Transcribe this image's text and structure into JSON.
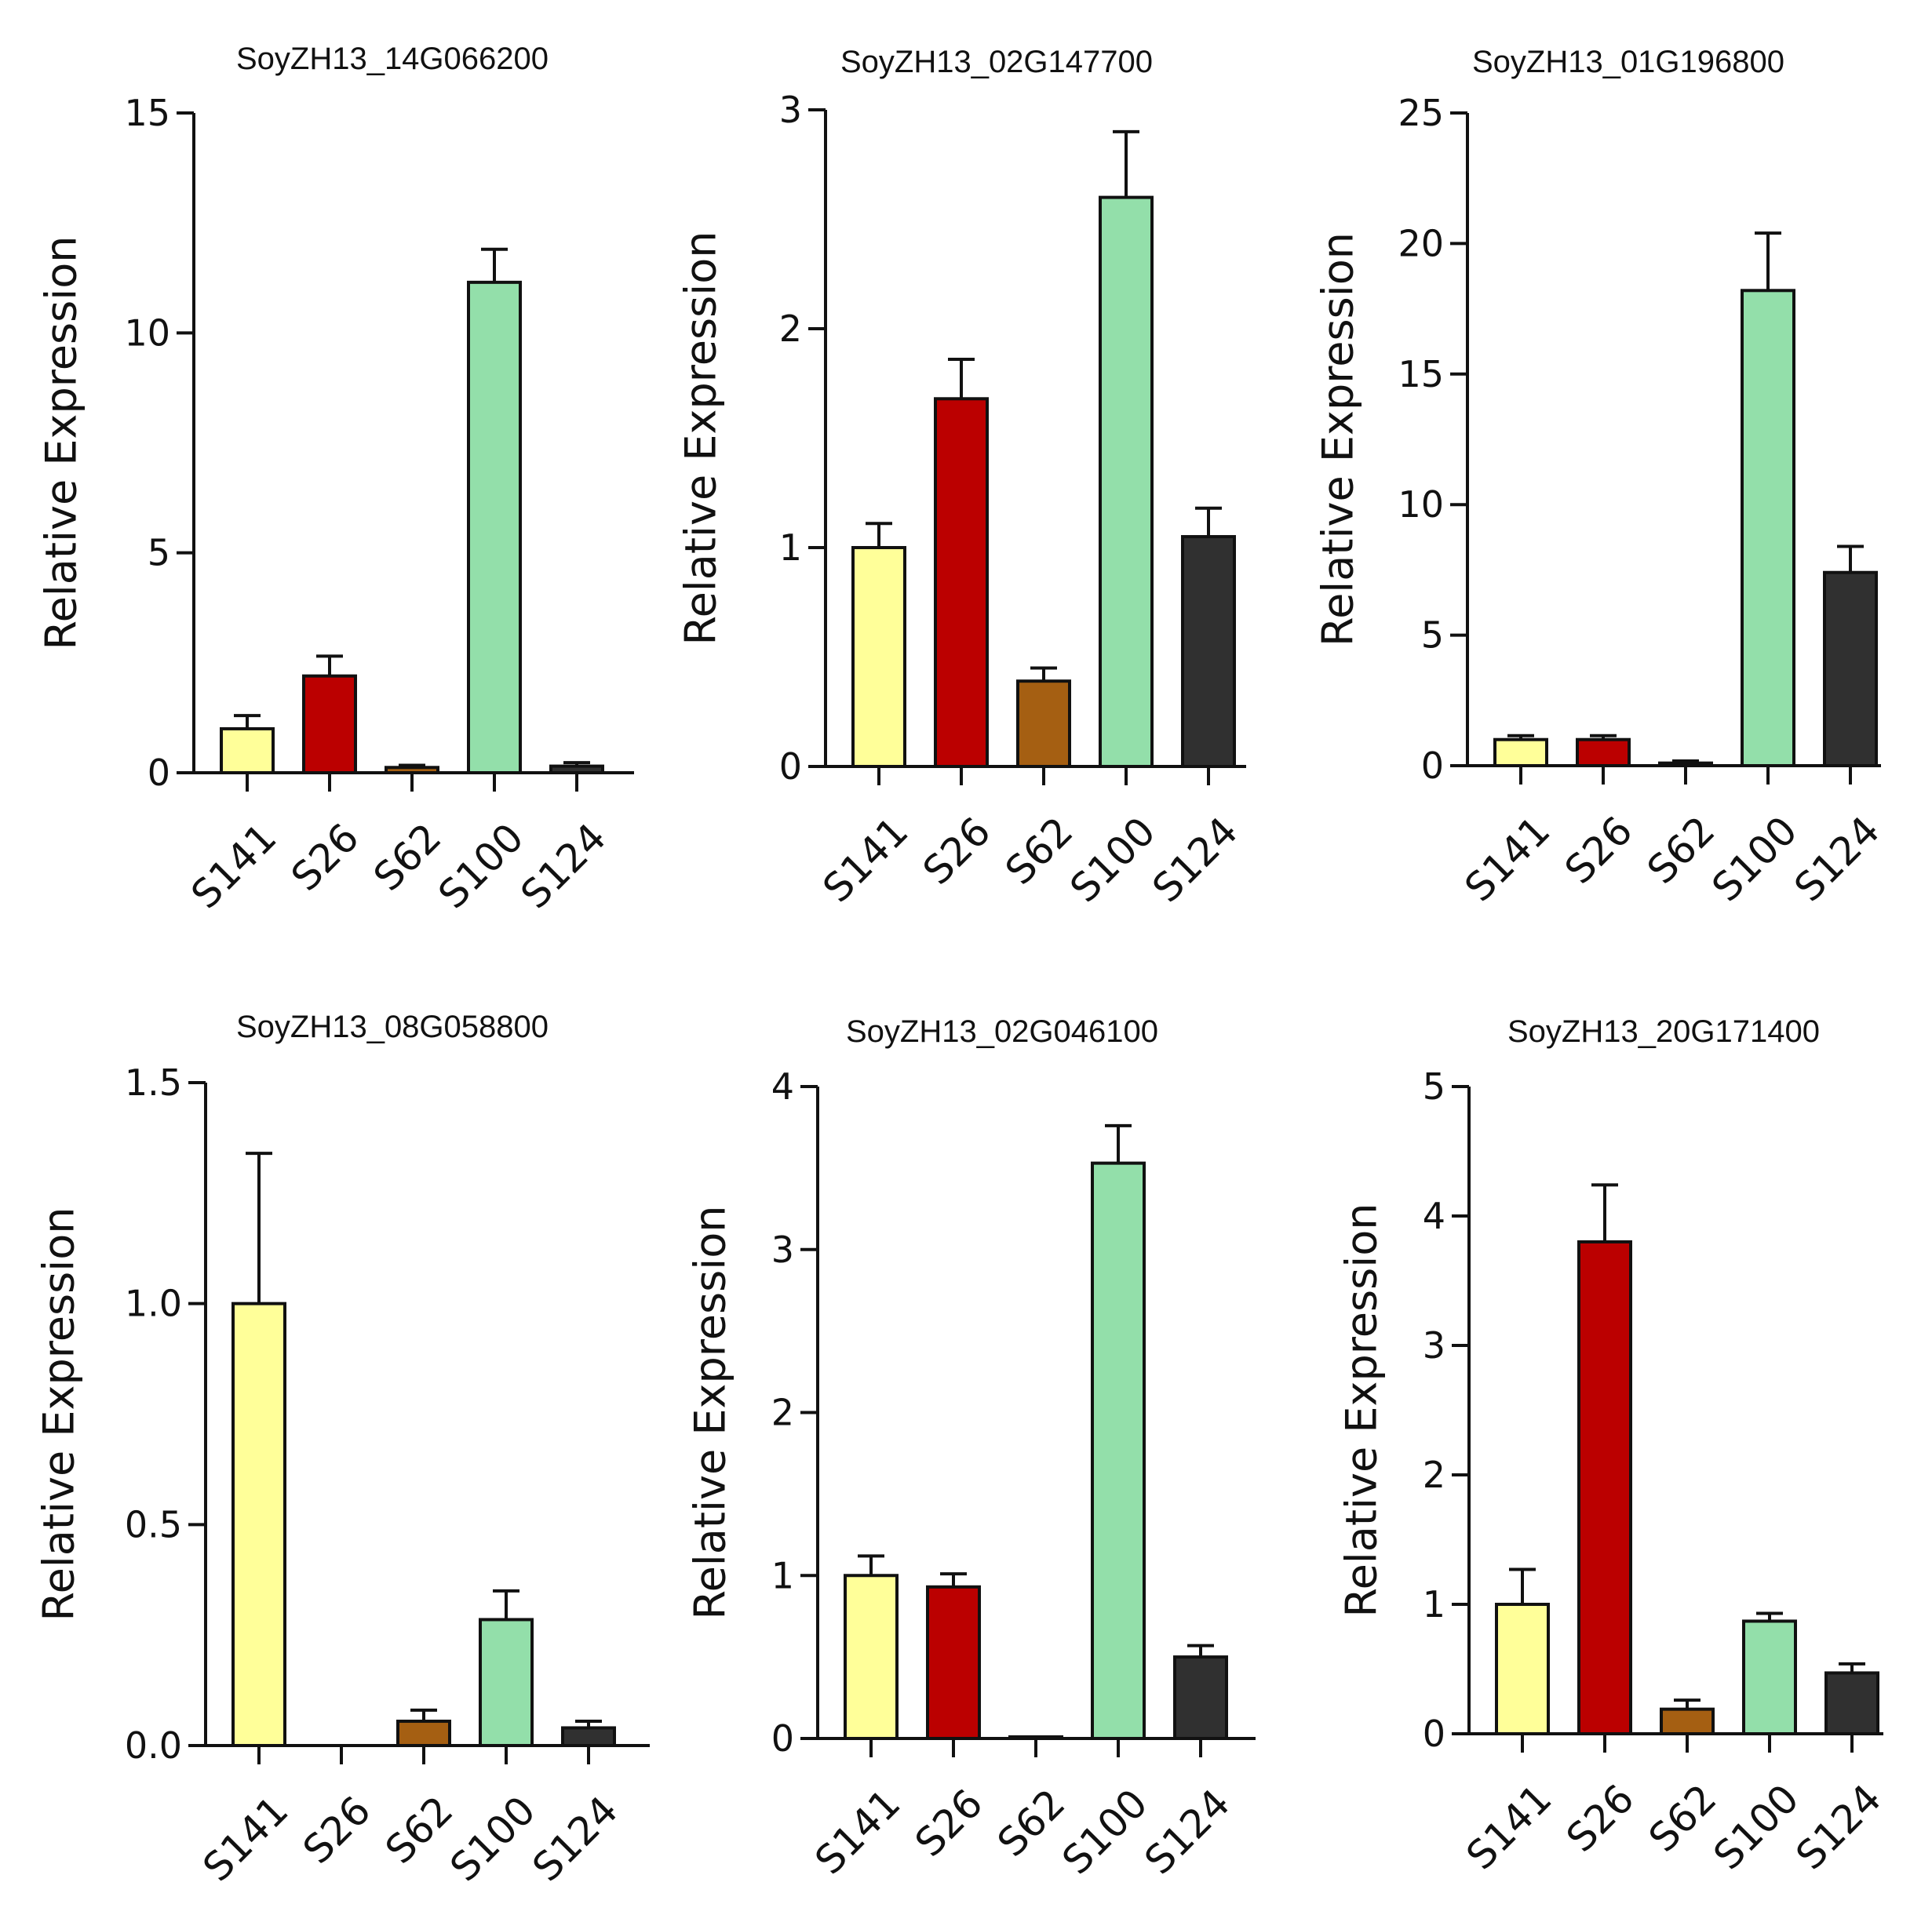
{
  "colors": {
    "S141": "#ffff99",
    "S26": "#bb0000",
    "S62": "#a55f12",
    "S100": "#93dfaa",
    "S124": "#303030"
  },
  "chart_data": [
    {
      "type": "bar",
      "title": "SoyZH13_14G066200",
      "ylabel": "Relative Expression",
      "xlabel": "",
      "categories": [
        "S141",
        "S26",
        "S62",
        "S100",
        "S124"
      ],
      "values": [
        1.0,
        2.2,
        0.12,
        11.15,
        0.15
      ],
      "errors": [
        0.3,
        0.45,
        0.05,
        0.75,
        0.08
      ],
      "ylim": [
        0,
        15
      ],
      "yticks": [
        0,
        5,
        10,
        15
      ],
      "ytick_labels": [
        "0",
        "5",
        "10",
        "15"
      ]
    },
    {
      "type": "bar",
      "title": "SoyZH13_02G147700",
      "ylabel": "Relative Expression",
      "xlabel": "",
      "categories": [
        "S141",
        "S26",
        "S62",
        "S100",
        "S124"
      ],
      "values": [
        1.0,
        1.68,
        0.39,
        2.6,
        1.05
      ],
      "errors": [
        0.11,
        0.18,
        0.06,
        0.3,
        0.13
      ],
      "ylim": [
        0,
        3
      ],
      "yticks": [
        0,
        1,
        2,
        3
      ],
      "ytick_labels": [
        "0",
        "1",
        "2",
        "3"
      ]
    },
    {
      "type": "bar",
      "title": "SoyZH13_01G196800",
      "ylabel": "Relative Expression",
      "xlabel": "",
      "categories": [
        "S141",
        "S26",
        "S62",
        "S100",
        "S124"
      ],
      "values": [
        1.0,
        1.0,
        0.1,
        18.2,
        7.4
      ],
      "errors": [
        0.15,
        0.15,
        0.08,
        2.2,
        1.0
      ],
      "ylim": [
        0,
        25
      ],
      "yticks": [
        0,
        5,
        10,
        15,
        20,
        25
      ],
      "ytick_labels": [
        "0",
        "5",
        "10",
        "15",
        "20",
        "25"
      ]
    },
    {
      "type": "bar",
      "title": "SoyZH13_08G058800",
      "ylabel": "Relative Expression",
      "xlabel": "",
      "categories": [
        "S141",
        "S26",
        "S62",
        "S100",
        "S124"
      ],
      "values": [
        1.0,
        0.0,
        0.055,
        0.285,
        0.04
      ],
      "errors": [
        0.34,
        0.0,
        0.025,
        0.065,
        0.015
      ],
      "ylim": [
        0,
        1.5
      ],
      "yticks": [
        0,
        0.5,
        1.0,
        1.5
      ],
      "ytick_labels": [
        "0.0",
        "0.5",
        "1.0",
        "1.5"
      ]
    },
    {
      "type": "bar",
      "title": "SoyZH13_02G046100",
      "ylabel": "Relative Expression",
      "xlabel": "",
      "categories": [
        "S141",
        "S26",
        "S62",
        "S100",
        "S124"
      ],
      "values": [
        1.0,
        0.93,
        0.01,
        3.53,
        0.5
      ],
      "errors": [
        0.12,
        0.08,
        0.0,
        0.23,
        0.07
      ],
      "ylim": [
        0,
        4
      ],
      "yticks": [
        0,
        1,
        2,
        3,
        4
      ],
      "ytick_labels": [
        "0",
        "1",
        "2",
        "3",
        "4"
      ]
    },
    {
      "type": "bar",
      "title": "SoyZH13_20G171400",
      "ylabel": "Relative Expression",
      "xlabel": "",
      "categories": [
        "S141",
        "S26",
        "S62",
        "S100",
        "S124"
      ],
      "values": [
        1.0,
        3.8,
        0.19,
        0.87,
        0.47
      ],
      "errors": [
        0.27,
        0.44,
        0.07,
        0.06,
        0.07
      ],
      "ylim": [
        0,
        5
      ],
      "yticks": [
        0,
        1,
        2,
        3,
        4,
        5
      ],
      "ytick_labels": [
        "0",
        "1",
        "2",
        "3",
        "4",
        "5"
      ]
    }
  ]
}
